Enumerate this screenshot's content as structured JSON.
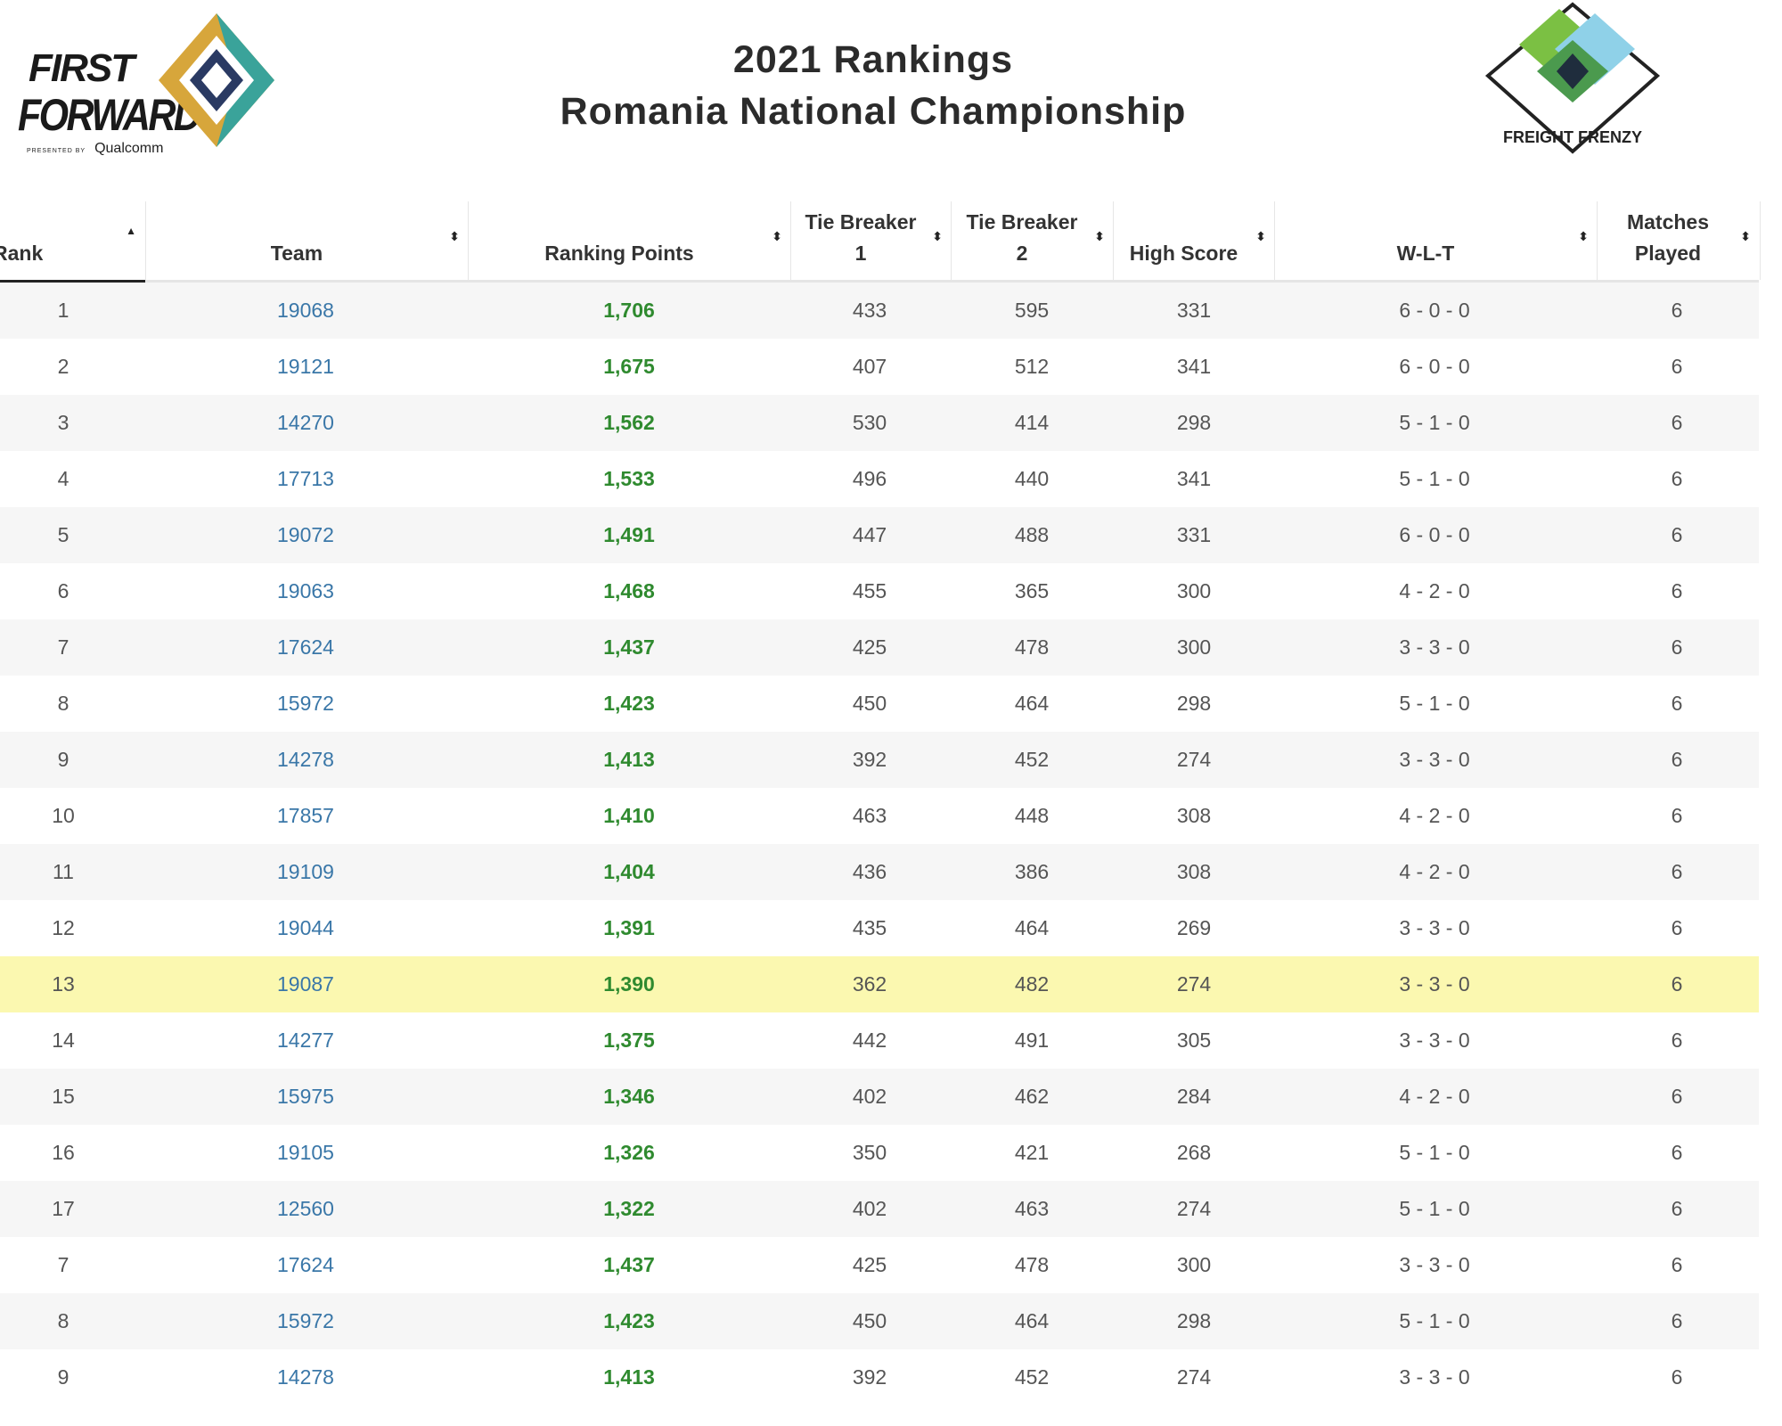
{
  "header": {
    "title_line1": "2021 Rankings",
    "title_line2": "Romania National Championship",
    "logo_left": {
      "word1": "FIRST",
      "word2": "FORWARD",
      "presented_by": "PRESENTED BY",
      "sponsor": "Qualcomm"
    },
    "logo_right": {
      "text": "FREIGHT FRENZY"
    }
  },
  "table": {
    "columns": {
      "rank": "Rank",
      "team": "Team",
      "ranking_points": "Ranking Points",
      "tb1_line1": "Tie Breaker",
      "tb1_line2": "1",
      "tb2_line1": "Tie Breaker",
      "tb2_line2": "2",
      "high_score": "High Score",
      "wlt": "W-L-T",
      "mp_line1": "Matches",
      "mp_line2": "Played"
    },
    "sort_icons": {
      "active": "▲",
      "inactive": "⬍"
    },
    "highlighted_team": "19087",
    "rows": [
      {
        "rank": "1",
        "team": "19068",
        "rp": "1,706",
        "tb1": "433",
        "tb2": "595",
        "hs": "331",
        "wlt": "6 - 0 - 0",
        "mp": "6"
      },
      {
        "rank": "2",
        "team": "19121",
        "rp": "1,675",
        "tb1": "407",
        "tb2": "512",
        "hs": "341",
        "wlt": "6 - 0 - 0",
        "mp": "6"
      },
      {
        "rank": "3",
        "team": "14270",
        "rp": "1,562",
        "tb1": "530",
        "tb2": "414",
        "hs": "298",
        "wlt": "5 - 1 - 0",
        "mp": "6"
      },
      {
        "rank": "4",
        "team": "17713",
        "rp": "1,533",
        "tb1": "496",
        "tb2": "440",
        "hs": "341",
        "wlt": "5 - 1 - 0",
        "mp": "6"
      },
      {
        "rank": "5",
        "team": "19072",
        "rp": "1,491",
        "tb1": "447",
        "tb2": "488",
        "hs": "331",
        "wlt": "6 - 0 - 0",
        "mp": "6"
      },
      {
        "rank": "6",
        "team": "19063",
        "rp": "1,468",
        "tb1": "455",
        "tb2": "365",
        "hs": "300",
        "wlt": "4 - 2 - 0",
        "mp": "6"
      },
      {
        "rank": "7",
        "team": "17624",
        "rp": "1,437",
        "tb1": "425",
        "tb2": "478",
        "hs": "300",
        "wlt": "3 - 3 - 0",
        "mp": "6"
      },
      {
        "rank": "8",
        "team": "15972",
        "rp": "1,423",
        "tb1": "450",
        "tb2": "464",
        "hs": "298",
        "wlt": "5 - 1 - 0",
        "mp": "6"
      },
      {
        "rank": "9",
        "team": "14278",
        "rp": "1,413",
        "tb1": "392",
        "tb2": "452",
        "hs": "274",
        "wlt": "3 - 3 - 0",
        "mp": "6"
      },
      {
        "rank": "10",
        "team": "17857",
        "rp": "1,410",
        "tb1": "463",
        "tb2": "448",
        "hs": "308",
        "wlt": "4 - 2 - 0",
        "mp": "6"
      },
      {
        "rank": "11",
        "team": "19109",
        "rp": "1,404",
        "tb1": "436",
        "tb2": "386",
        "hs": "308",
        "wlt": "4 - 2 - 0",
        "mp": "6"
      },
      {
        "rank": "12",
        "team": "19044",
        "rp": "1,391",
        "tb1": "435",
        "tb2": "464",
        "hs": "269",
        "wlt": "3 - 3 - 0",
        "mp": "6"
      },
      {
        "rank": "13",
        "team": "19087",
        "rp": "1,390",
        "tb1": "362",
        "tb2": "482",
        "hs": "274",
        "wlt": "3 - 3 - 0",
        "mp": "6"
      },
      {
        "rank": "14",
        "team": "14277",
        "rp": "1,375",
        "tb1": "442",
        "tb2": "491",
        "hs": "305",
        "wlt": "3 - 3 - 0",
        "mp": "6"
      },
      {
        "rank": "15",
        "team": "15975",
        "rp": "1,346",
        "tb1": "402",
        "tb2": "462",
        "hs": "284",
        "wlt": "4 - 2 - 0",
        "mp": "6"
      },
      {
        "rank": "16",
        "team": "19105",
        "rp": "1,326",
        "tb1": "350",
        "tb2": "421",
        "hs": "268",
        "wlt": "5 - 1 - 0",
        "mp": "6"
      },
      {
        "rank": "17",
        "team": "12560",
        "rp": "1,322",
        "tb1": "402",
        "tb2": "463",
        "hs": "274",
        "wlt": "5 - 1 - 0",
        "mp": "6"
      },
      {
        "rank": "7",
        "team": "17624",
        "rp": "1,437",
        "tb1": "425",
        "tb2": "478",
        "hs": "300",
        "wlt": "3 - 3 - 0",
        "mp": "6"
      },
      {
        "rank": "8",
        "team": "15972",
        "rp": "1,423",
        "tb1": "450",
        "tb2": "464",
        "hs": "298",
        "wlt": "5 - 1 - 0",
        "mp": "6"
      },
      {
        "rank": "9",
        "team": "14278",
        "rp": "1,413",
        "tb1": "392",
        "tb2": "452",
        "hs": "274",
        "wlt": "3 - 3 - 0",
        "mp": "6"
      }
    ]
  }
}
